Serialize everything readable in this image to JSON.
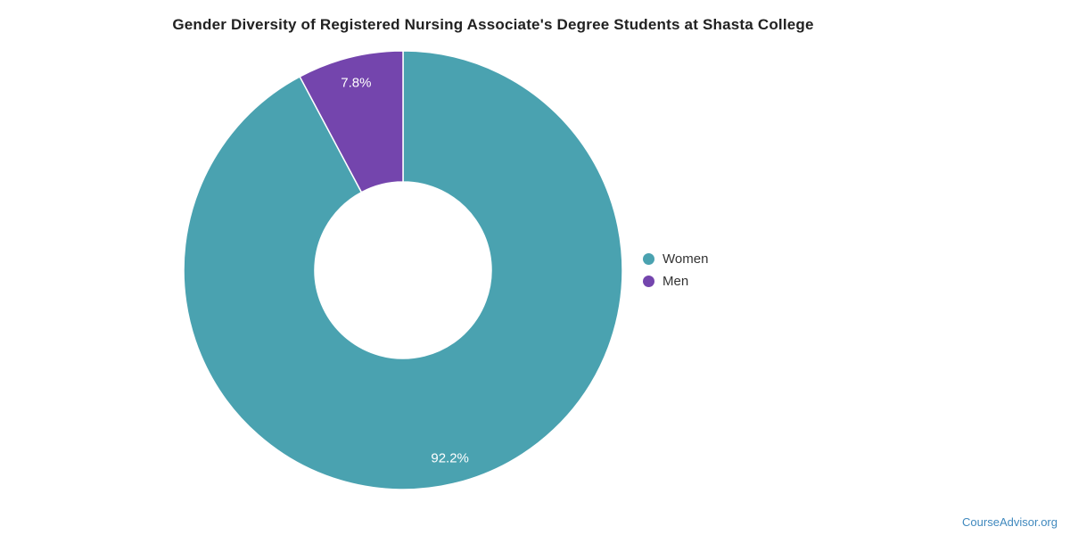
{
  "chart_data": {
    "type": "pie",
    "donut": true,
    "title": "Gender Diversity of Registered Nursing Associate's Degree Students at Shasta College",
    "series": [
      {
        "name": "Women",
        "value": 92.2,
        "label": "92.2%",
        "color": "#4AA2B0"
      },
      {
        "name": "Men",
        "value": 7.8,
        "label": "7.8%",
        "color": "#7445AD"
      }
    ],
    "start_angle_deg": 0,
    "direction": "clockwise",
    "inner_radius_ratio": 0.4,
    "legend_position": "right",
    "slice_label_color": "#FFFFFF",
    "border_color": "#FFFFFF",
    "background_color": "#FFFFFF"
  },
  "watermark": {
    "text": "CourseAdvisor.org",
    "color": "#4089BE"
  }
}
